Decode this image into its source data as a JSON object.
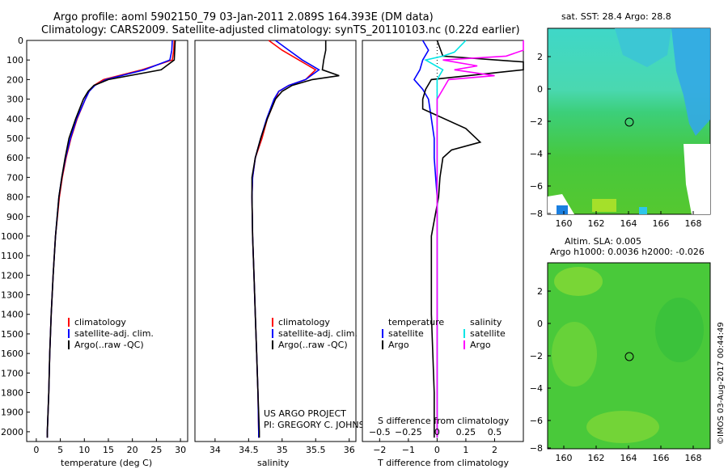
{
  "titles": {
    "line1": "Argo profile: aoml 5902150_79 03-Jan-2011 2.089S 164.393E (DM data)",
    "line2": "Climatology: CARS2009. Satellite-adjusted climatology: synTS_20110103.nc (0.22d earlier)"
  },
  "colors": {
    "climatology": "#ff0000",
    "satellite": "#0000ff",
    "argo": "#000000",
    "salinity_sat": "#00e5e5",
    "salinity_argo": "#ff00ff"
  },
  "depth_ticks": [
    "0",
    "100",
    "200",
    "300",
    "400",
    "500",
    "600",
    "700",
    "800",
    "900",
    "1000",
    "1100",
    "1200",
    "1300",
    "1400",
    "1500",
    "1600",
    "1700",
    "1800",
    "1900",
    "2000"
  ],
  "chart_data": [
    {
      "type": "line",
      "id": "temperature",
      "xlabel": "temperature (deg C)",
      "ylabel": "",
      "xlim": [
        -2,
        31.5
      ],
      "ylim": [
        2050,
        0
      ],
      "xticks": [
        0,
        5,
        10,
        15,
        20,
        25,
        30
      ],
      "legend": [
        "climatology",
        "satellite-adj. clim.",
        "Argo(..raw -QC)"
      ],
      "series": [
        {
          "name": "climatology",
          "depth": [
            0,
            50,
            100,
            150,
            200,
            230,
            260,
            300,
            400,
            500,
            600,
            700,
            800,
            1000,
            1200,
            1400,
            1600,
            1800,
            2000,
            2030
          ],
          "values": [
            28.7,
            28.6,
            28.3,
            22,
            14,
            12,
            11,
            10.2,
            8.5,
            7.2,
            6.2,
            5.4,
            4.8,
            4,
            3.5,
            3.1,
            2.8,
            2.6,
            2.3,
            2.3
          ]
        },
        {
          "name": "satellite-adj. clim.",
          "depth": [
            0,
            50,
            100,
            150,
            200,
            230,
            260,
            300,
            400,
            500,
            600,
            700,
            800,
            1000,
            1200,
            1400,
            1600,
            1800,
            2000,
            2030
          ],
          "values": [
            28.3,
            28.2,
            27.8,
            22.5,
            14.5,
            12.2,
            11,
            10.2,
            8.4,
            7.1,
            6.1,
            5.3,
            4.7,
            4,
            3.5,
            3.1,
            2.8,
            2.6,
            2.3,
            2.3
          ]
        },
        {
          "name": "Argo",
          "depth": [
            0,
            50,
            100,
            150,
            200,
            230,
            260,
            300,
            400,
            500,
            600,
            700,
            800,
            1000,
            1200,
            1400,
            1600,
            1800,
            2000,
            2030
          ],
          "values": [
            28.9,
            28.8,
            28.7,
            26,
            15,
            12,
            10.8,
            9.8,
            8.2,
            6.8,
            6,
            5.3,
            4.7,
            4,
            3.5,
            3.1,
            2.8,
            2.6,
            2.3,
            2.3
          ]
        }
      ]
    },
    {
      "type": "line",
      "id": "salinity",
      "xlabel": "salinity",
      "xlim": [
        33.7,
        36.1
      ],
      "ylim": [
        2050,
        0
      ],
      "xticks": [
        34,
        34.5,
        35,
        35.5,
        36
      ],
      "xticklabels": [
        "34",
        "34.5",
        "35",
        "35.5",
        "36"
      ],
      "legend": [
        "climatology",
        "satellite-adj. clim.",
        "Argo(..raw -QC)"
      ],
      "annotation": [
        "US ARGO PROJECT",
        "PI: GREGORY C. JOHNSON"
      ],
      "series": [
        {
          "name": "climatology",
          "depth": [
            0,
            50,
            100,
            150,
            200,
            230,
            260,
            300,
            400,
            500,
            600,
            700,
            800,
            1000,
            1200,
            1400,
            1600,
            1800,
            2000,
            2030
          ],
          "values": [
            34.8,
            35.0,
            35.25,
            35.5,
            35.35,
            35.1,
            34.95,
            34.9,
            34.78,
            34.7,
            34.6,
            34.56,
            34.55,
            34.56,
            34.58,
            34.6,
            34.62,
            34.64,
            34.65,
            34.65
          ]
        },
        {
          "name": "satellite-adj. clim.",
          "depth": [
            0,
            50,
            100,
            150,
            200,
            230,
            260,
            300,
            400,
            500,
            600,
            700,
            800,
            1000,
            1200,
            1400,
            1600,
            1800,
            2000,
            2030
          ],
          "values": [
            34.9,
            35.1,
            35.3,
            35.55,
            35.35,
            35.1,
            34.95,
            34.88,
            34.77,
            34.68,
            34.6,
            34.56,
            34.55,
            34.56,
            34.58,
            34.6,
            34.62,
            34.64,
            34.65,
            34.65
          ]
        },
        {
          "name": "Argo",
          "depth": [
            0,
            50,
            100,
            150,
            180,
            200,
            230,
            260,
            300,
            400,
            500,
            600,
            700,
            800,
            1000,
            1200,
            1400,
            1600,
            1800,
            2000,
            2030
          ],
          "values": [
            35.65,
            35.65,
            35.62,
            35.6,
            35.85,
            35.45,
            35.15,
            35.0,
            34.9,
            34.78,
            34.68,
            34.6,
            34.55,
            34.55,
            34.56,
            34.58,
            34.6,
            34.62,
            34.64,
            34.66,
            34.66
          ]
        }
      ]
    },
    {
      "type": "line",
      "id": "differences",
      "xlabel": "T difference from climatology",
      "xlabel2": "S difference from climatology",
      "xlim": [
        -2.6,
        3.0
      ],
      "ylim": [
        2050,
        0
      ],
      "xticks": [
        -2,
        -1,
        0,
        1,
        2
      ],
      "xticks_s": [
        -0.5,
        -0.25,
        0,
        0.25,
        0.5
      ],
      "legend_temperature": [
        "temperature",
        "satellite",
        "Argo"
      ],
      "legend_salinity": [
        "salinity",
        "satellite",
        "Argo"
      ],
      "series": [
        {
          "name": "temperature satellite",
          "depth": [
            0,
            50,
            100,
            150,
            200,
            250,
            300,
            400,
            500,
            600,
            700,
            800,
            1000,
            1400,
            1800,
            2030
          ],
          "values": [
            -0.5,
            -0.3,
            -0.5,
            -0.6,
            -0.8,
            -0.5,
            -0.3,
            -0.2,
            -0.1,
            -0.1,
            -0.05,
            0,
            0,
            0,
            0,
            0
          ]
        },
        {
          "name": "temperature Argo",
          "depth": [
            0,
            80,
            110,
            150,
            200,
            250,
            300,
            350,
            450,
            520,
            560,
            600,
            700,
            800,
            1000,
            1400,
            1800,
            2030
          ],
          "values": [
            0,
            0.2,
            3.2,
            3.0,
            -0.2,
            -0.4,
            -0.5,
            -0.5,
            1.0,
            1.5,
            0.5,
            0.2,
            0.1,
            0.05,
            -0.2,
            -0.2,
            -0.1,
            -0.1
          ]
        },
        {
          "name": "salinity satellite",
          "depth": [
            0,
            60,
            80,
            100,
            150,
            200,
            300,
            400,
            500,
            600,
            700,
            800,
            1000,
            1400,
            1800,
            2030
          ],
          "values": [
            0.25,
            0.15,
            0.05,
            -0.1,
            0.05,
            0,
            0,
            0,
            0,
            0,
            0,
            0,
            0,
            0,
            0,
            0
          ]
        },
        {
          "name": "salinity Argo",
          "depth": [
            0,
            50,
            80,
            100,
            130,
            150,
            180,
            200,
            250,
            300,
            400,
            600,
            800,
            1000,
            1400,
            1800,
            2030
          ],
          "values": [
            0.85,
            0.85,
            0.6,
            0.05,
            0.35,
            0.15,
            0.5,
            0.1,
            0.05,
            0,
            0,
            0,
            0,
            0,
            0,
            0,
            0
          ]
        }
      ]
    }
  ],
  "maps": {
    "sst": {
      "title": "sat. SST: 28.4 Argo: 28.8",
      "xticks": [
        "160",
        "162",
        "164",
        "166",
        "168"
      ],
      "yticks": [
        "2",
        "0",
        "-2",
        "-4",
        "-6",
        "-8"
      ]
    },
    "sla": {
      "title1": "Altim. SLA: 0.005",
      "title2": "Argo h1000: 0.0036 h2000: -0.026",
      "xticks": [
        "160",
        "162",
        "164",
        "166",
        "168"
      ],
      "yticks": [
        "2",
        "0",
        "-2",
        "-4",
        "-6",
        "-8"
      ]
    }
  },
  "credit": "©IMOS 03-Aug-2017 00:44:49"
}
